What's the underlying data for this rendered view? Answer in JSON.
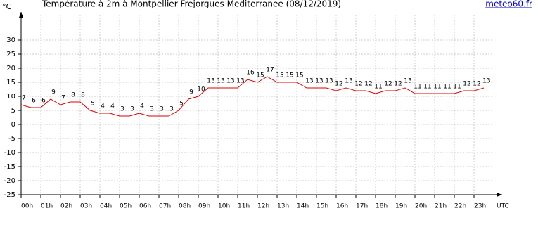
{
  "chart_data": {
    "type": "line",
    "title": "Température à 2m à Montpellier Frejorgues Mediterranee (08/12/2019)",
    "source": "meteo60.fr",
    "y_label": "°C",
    "x_label": "UTC",
    "categories": [
      "00h",
      null,
      "01h",
      null,
      "02h",
      null,
      "03h",
      null,
      "04h",
      null,
      "05h",
      null,
      "06h",
      null,
      "07h",
      null,
      "08h",
      null,
      "09h",
      null,
      "10h",
      null,
      "11h",
      null,
      "12h",
      null,
      "13h",
      null,
      "14h",
      null,
      "15h",
      null,
      "16h",
      null,
      "17h",
      null,
      "18h",
      null,
      "19h",
      null,
      "20h",
      null,
      "21h",
      null,
      "22h",
      null,
      "23h",
      null
    ],
    "series": [
      {
        "name": "Température",
        "color": "#e00000",
        "values": [
          7,
          6,
          6,
          9,
          7,
          8,
          8,
          5,
          4,
          4,
          3,
          3,
          4,
          3,
          3,
          3,
          5,
          9,
          10,
          13,
          13,
          13,
          13,
          16,
          15,
          17,
          15,
          15,
          15,
          13,
          13,
          13,
          12,
          13,
          12,
          12,
          11,
          12,
          12,
          13,
          11,
          11,
          11,
          11,
          11,
          12,
          12,
          13
        ]
      }
    ],
    "ylim": [
      -25,
      39
    ],
    "yticks": [
      -25,
      -20,
      -15,
      -10,
      -5,
      0,
      5,
      10,
      15,
      20,
      25,
      30
    ],
    "grid": true
  }
}
